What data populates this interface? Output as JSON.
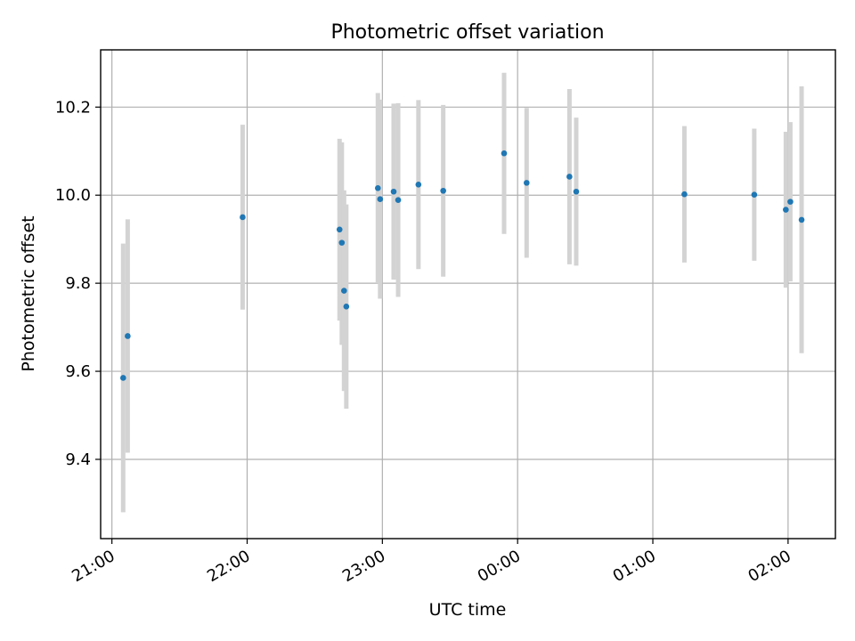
{
  "chart_data": {
    "type": "scatter",
    "title": "Photometric offset variation",
    "xlabel": "UTC time",
    "ylabel": "Photometric offset",
    "x_ticks": [
      "21:00",
      "22:00",
      "23:00",
      "00:00",
      "01:00",
      "02:00"
    ],
    "y_ticks": [
      "9.4",
      "9.6",
      "9.8",
      "10.0",
      "10.2"
    ],
    "x_tick_values": [
      "21:00",
      "22:00",
      "23:00",
      "00:00",
      "01:00",
      "02:00"
    ],
    "xlim": [
      "20:55",
      "02:21"
    ],
    "ylim": [
      9.22,
      10.33
    ],
    "grid": true,
    "colors": {
      "point": "#1f77b4",
      "errorbar": "#d3d3d3",
      "grid": "#b0b0b0"
    },
    "series": [
      {
        "points": [
          {
            "x": "21:05",
            "y": 9.585,
            "ylo": 9.28,
            "yhi": 9.89
          },
          {
            "x": "21:07",
            "y": 9.68,
            "ylo": 9.415,
            "yhi": 9.945
          },
          {
            "x": "21:58",
            "y": 9.95,
            "ylo": 9.74,
            "yhi": 10.16
          },
          {
            "x": "22:41",
            "y": 9.922,
            "ylo": 9.715,
            "yhi": 10.128
          },
          {
            "x": "22:42",
            "y": 9.892,
            "ylo": 9.66,
            "yhi": 10.12
          },
          {
            "x": "22:43",
            "y": 9.783,
            "ylo": 9.555,
            "yhi": 10.011
          },
          {
            "x": "22:44",
            "y": 9.747,
            "ylo": 9.515,
            "yhi": 9.979
          },
          {
            "x": "22:58",
            "y": 10.016,
            "ylo": 9.8,
            "yhi": 10.232
          },
          {
            "x": "22:59",
            "y": 9.991,
            "ylo": 9.765,
            "yhi": 10.217
          },
          {
            "x": "23:05",
            "y": 10.008,
            "ylo": 9.808,
            "yhi": 10.208
          },
          {
            "x": "23:07",
            "y": 9.989,
            "ylo": 9.769,
            "yhi": 10.209
          },
          {
            "x": "23:16",
            "y": 10.024,
            "ylo": 9.832,
            "yhi": 10.216
          },
          {
            "x": "23:27",
            "y": 10.01,
            "ylo": 9.815,
            "yhi": 10.205
          },
          {
            "x": "23:54",
            "y": 10.095,
            "ylo": 9.912,
            "yhi": 10.278
          },
          {
            "x": "00:04",
            "y": 10.028,
            "ylo": 9.858,
            "yhi": 10.198
          },
          {
            "x": "00:23",
            "y": 10.042,
            "ylo": 9.843,
            "yhi": 10.241
          },
          {
            "x": "00:26",
            "y": 10.008,
            "ylo": 9.84,
            "yhi": 10.176
          },
          {
            "x": "01:14",
            "y": 10.002,
            "ylo": 9.847,
            "yhi": 10.157
          },
          {
            "x": "01:45",
            "y": 10.001,
            "ylo": 9.851,
            "yhi": 10.151
          },
          {
            "x": "01:59",
            "y": 9.967,
            "ylo": 9.79,
            "yhi": 10.144
          },
          {
            "x": "02:01",
            "y": 9.985,
            "ylo": 9.804,
            "yhi": 10.166
          },
          {
            "x": "02:06",
            "y": 9.944,
            "ylo": 9.641,
            "yhi": 10.247
          }
        ]
      }
    ]
  }
}
